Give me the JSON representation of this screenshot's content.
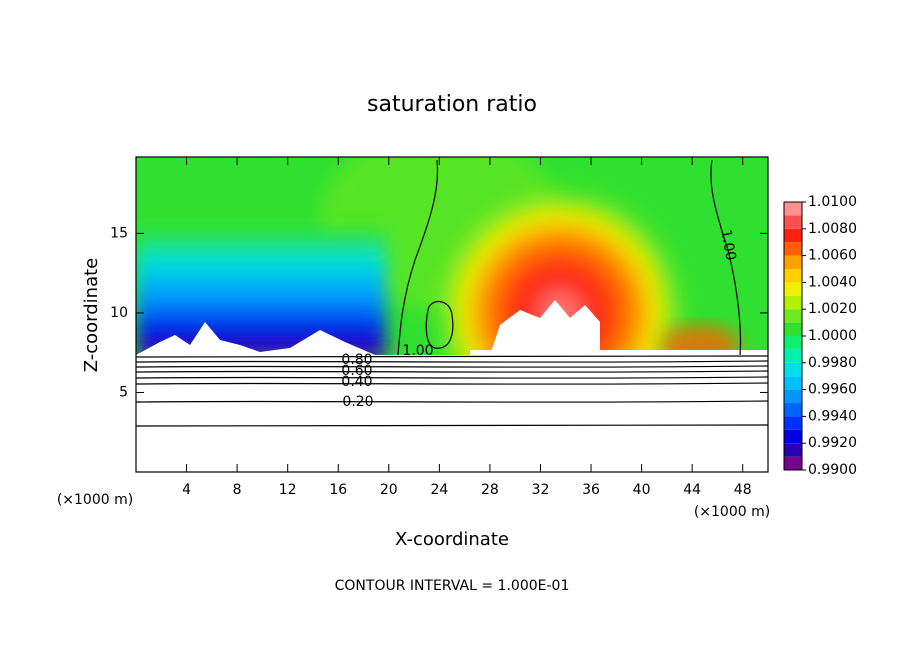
{
  "chart_data": {
    "type": "contour",
    "title": "saturation ratio",
    "x_label": "X-coordinate",
    "y_label": "Z-coordinate",
    "x_unit": "(×1000 m)",
    "y_unit": "(×1000 m)",
    "xlim": [
      0,
      50
    ],
    "xticks": [
      4,
      8,
      12,
      16,
      20,
      24,
      28,
      32,
      36,
      40,
      44,
      48
    ],
    "ylim": [
      0,
      19.8
    ],
    "yticks": [
      5,
      10,
      15
    ],
    "colorbar": {
      "levels": [
        0.99,
        0.991,
        0.992,
        0.993,
        0.994,
        0.995,
        0.996,
        0.997,
        0.998,
        0.999,
        1.0,
        1.001,
        1.002,
        1.003,
        1.004,
        1.005,
        1.006,
        1.007,
        1.008,
        1.009,
        1.01
      ],
      "colors": [
        "#78008c",
        "#2a00b0",
        "#0000e0",
        "#0030ff",
        "#0064ff",
        "#0096ff",
        "#00c0ff",
        "#00e0e8",
        "#00f0b0",
        "#10f070",
        "#30e030",
        "#70e820",
        "#b0f000",
        "#f0f000",
        "#ffd000",
        "#ffa000",
        "#ff6000",
        "#ff2010",
        "#ff5050",
        "#ff9090"
      ],
      "ticks": [
        {
          "value": 0.99,
          "label": "0.9900"
        },
        {
          "value": 0.992,
          "label": "0.9920"
        },
        {
          "value": 0.994,
          "label": "0.9940"
        },
        {
          "value": 0.996,
          "label": "0.9960"
        },
        {
          "value": 0.998,
          "label": "0.9980"
        },
        {
          "value": 1.0,
          "label": "1.0000"
        },
        {
          "value": 1.002,
          "label": "1.0020"
        },
        {
          "value": 1.004,
          "label": "1.0040"
        },
        {
          "value": 1.006,
          "label": "1.0060"
        },
        {
          "value": 1.008,
          "label": "1.0080"
        },
        {
          "value": 1.01,
          "label": "1.0100"
        }
      ]
    },
    "contour_labels": [
      "1.00",
      "1.00",
      "0.80",
      "0.60",
      "0.40",
      "0.20"
    ],
    "footnote": "CONTOUR INTERVAL = 1.000E-01"
  }
}
